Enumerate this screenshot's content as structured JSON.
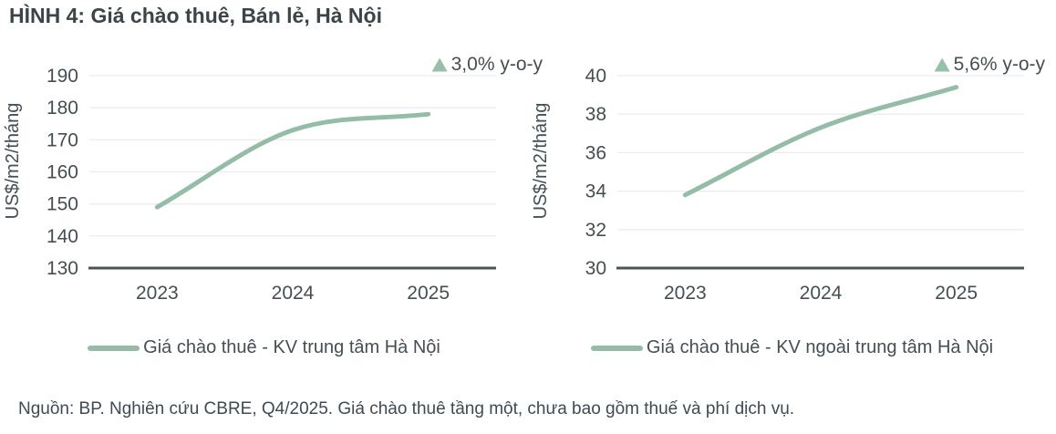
{
  "page": {
    "title": "HÌNH 4: Giá chào thuê, Bán lẻ, Hà Nội",
    "source_note": "Nguồn: BP. Nghiên cứu CBRE, Q4/2025. Giá chào thuê tầng một, chưa bao gồm thuế và phí dịch vụ."
  },
  "colors": {
    "line": "#94bca7",
    "triangle": "#97bfaa",
    "grid": "#ececec",
    "axis": "#4a5458",
    "text": "#454e52",
    "title_text": "#3b4447",
    "footer_text": "#3e4a54"
  },
  "chart_data": [
    {
      "type": "line",
      "title": "",
      "ylabel": "US$/m2/tháng",
      "xlabel": "",
      "categories": [
        "2023",
        "2024",
        "2025"
      ],
      "series": [
        {
          "name": "Giá chào thuê - KV trung tâm Hà Nội",
          "values": [
            149,
            173,
            178
          ]
        }
      ],
      "ylim": [
        130,
        190
      ],
      "yticks": [
        130,
        140,
        150,
        160,
        170,
        180,
        190
      ],
      "grid": true,
      "legend_position": "bottom",
      "annotation": {
        "direction_icon": "up-triangle",
        "text": "3,0% y-o-y"
      }
    },
    {
      "type": "line",
      "title": "",
      "ylabel": "US$/m2/tháng",
      "xlabel": "",
      "categories": [
        "2023",
        "2024",
        "2025"
      ],
      "series": [
        {
          "name": "Giá chào thuê - KV ngoài trung tâm Hà Nội",
          "values": [
            33.8,
            37.3,
            39.4
          ]
        }
      ],
      "ylim": [
        30,
        40
      ],
      "yticks": [
        30,
        32,
        34,
        36,
        38,
        40
      ],
      "grid": true,
      "legend_position": "bottom",
      "annotation": {
        "direction_icon": "up-triangle",
        "text": "5,6% y-o-y"
      }
    }
  ]
}
